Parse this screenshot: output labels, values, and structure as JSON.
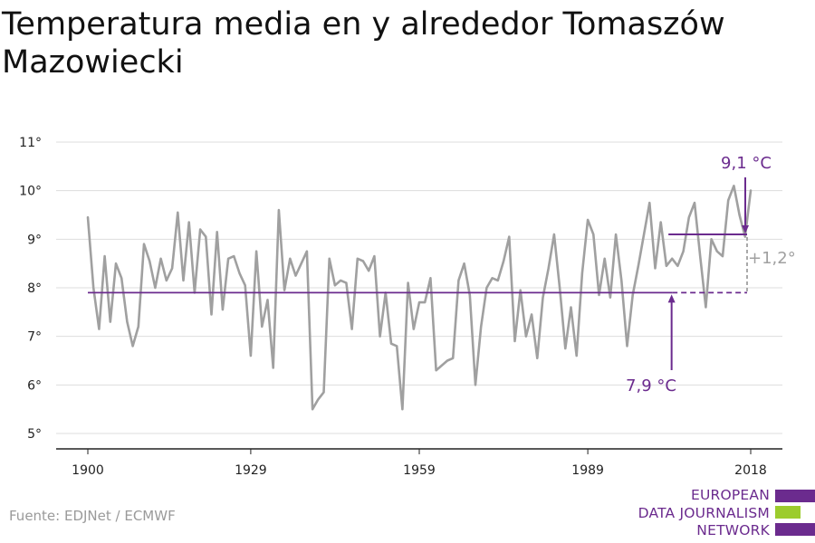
{
  "title": "Temperatura media en y alrededor Tomaszów Mazowiecki",
  "source": "Fuente: EDJNet / ECMWF",
  "logo": {
    "lines": [
      "EUROPEAN",
      "DATA JOURNALISM",
      "NETWORK"
    ],
    "colors": [
      "#6b2b8e",
      "#9ccc2d",
      "#6b2b8e"
    ]
  },
  "colors": {
    "series": "#a0a0a0",
    "accent": "#6b2b8e",
    "grid": "#dddddd",
    "diff": "#a0a0a0"
  },
  "chart_data": {
    "type": "line",
    "x": [
      1900,
      1901,
      1902,
      1903,
      1904,
      1905,
      1906,
      1907,
      1908,
      1909,
      1910,
      1911,
      1912,
      1913,
      1914,
      1915,
      1916,
      1917,
      1918,
      1919,
      1920,
      1921,
      1922,
      1923,
      1924,
      1925,
      1926,
      1927,
      1928,
      1929,
      1930,
      1931,
      1932,
      1933,
      1934,
      1935,
      1936,
      1937,
      1938,
      1939,
      1940,
      1941,
      1942,
      1943,
      1944,
      1945,
      1946,
      1947,
      1948,
      1949,
      1950,
      1951,
      1952,
      1953,
      1954,
      1955,
      1956,
      1957,
      1958,
      1959,
      1960,
      1961,
      1962,
      1963,
      1964,
      1965,
      1966,
      1967,
      1968,
      1969,
      1970,
      1971,
      1972,
      1973,
      1974,
      1975,
      1976,
      1977,
      1978,
      1979,
      1980,
      1981,
      1982,
      1983,
      1984,
      1985,
      1986,
      1987,
      1988,
      1989,
      1990,
      1991,
      1992,
      1993,
      1994,
      1995,
      1996,
      1997,
      1998,
      1999,
      2000,
      2001,
      2002,
      2003,
      2004,
      2005,
      2006,
      2007,
      2008,
      2009,
      2010,
      2011,
      2012,
      2013,
      2014,
      2015,
      2016,
      2017,
      2018
    ],
    "series": [
      {
        "values": [
          9.45,
          8.0,
          7.15,
          8.65,
          7.3,
          8.5,
          8.2,
          7.3,
          6.8,
          7.2,
          8.9,
          8.55,
          8.0,
          8.6,
          8.15,
          8.4,
          9.55,
          8.15,
          9.35,
          7.9,
          9.2,
          9.05,
          7.45,
          9.15,
          7.55,
          8.6,
          8.65,
          8.3,
          8.05,
          6.6,
          8.75,
          7.2,
          7.75,
          6.35,
          9.6,
          7.95,
          8.6,
          8.25,
          8.5,
          8.75,
          5.5,
          5.7,
          5.85,
          8.6,
          8.05,
          8.15,
          8.1,
          7.15,
          8.6,
          8.55,
          8.35,
          8.65,
          7.0,
          7.9,
          6.85,
          6.8,
          5.5,
          8.1,
          7.15,
          7.7,
          7.7,
          8.2,
          6.3,
          6.4,
          6.5,
          6.55,
          8.15,
          8.5,
          7.85,
          6.0,
          7.2,
          8.0,
          8.2,
          8.15,
          8.55,
          9.05,
          6.9,
          7.95,
          7.0,
          7.45,
          6.55,
          7.8,
          8.4,
          9.1,
          8.0,
          6.75,
          7.6,
          6.6,
          8.3,
          9.4,
          9.1,
          7.85,
          8.6,
          7.8,
          9.1,
          8.15,
          6.8,
          7.85,
          8.45,
          9.1,
          9.75,
          8.4,
          9.35,
          8.45,
          8.6,
          8.45,
          8.75,
          9.45,
          9.75,
          8.65,
          7.6,
          9.0,
          8.75,
          8.65,
          9.8,
          10.1,
          9.5,
          9.05,
          10.0
        ]
      }
    ],
    "baseline": {
      "value": 7.9,
      "label": "7,9 °C",
      "from": 1900,
      "to": 2018,
      "dashed_from": 2004
    },
    "recent": {
      "value": 9.1,
      "label": "9,1 °C",
      "from": 2004,
      "to": 2018
    },
    "difference": {
      "label": "+1,2°"
    },
    "x_ticks": [
      1900,
      1929,
      1959,
      1989,
      2018
    ],
    "y_ticks": [
      5,
      6,
      7,
      8,
      9,
      10,
      11
    ],
    "y_tick_labels": [
      "5°",
      "6°",
      "7°",
      "8°",
      "9°",
      "10°",
      "11°"
    ],
    "ylim": [
      4.7,
      11.1
    ],
    "xlim": [
      1900,
      2018
    ],
    "grid": true
  }
}
